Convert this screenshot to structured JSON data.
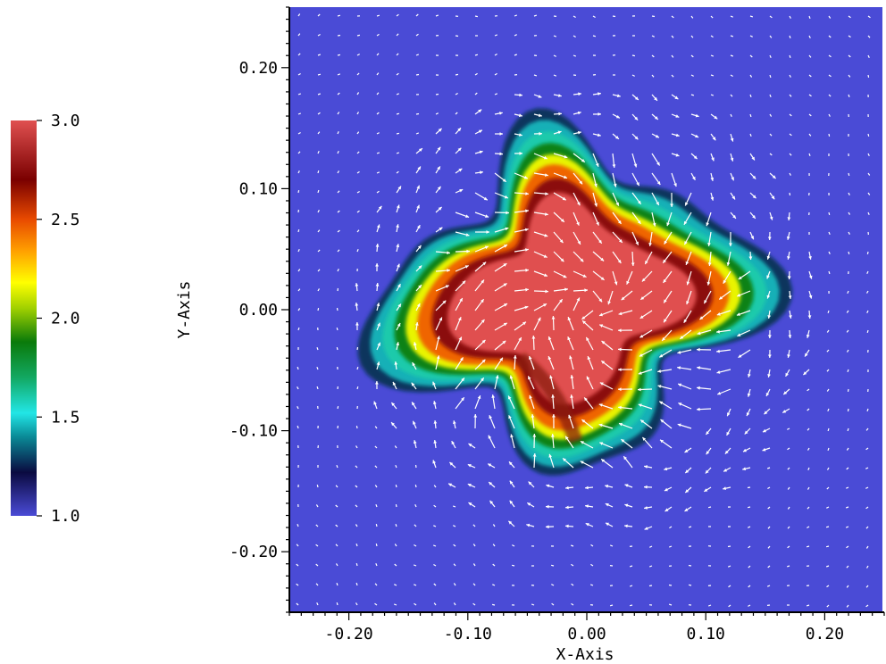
{
  "chart_data": {
    "type": "heatmap",
    "title": "",
    "xlabel": "X-Axis",
    "ylabel": "Y-Axis",
    "xlim": [
      -0.25,
      0.25
    ],
    "ylim": [
      -0.25,
      0.25
    ],
    "x_ticks": [
      "-0.20",
      "-0.10",
      "0.00",
      "0.10",
      "0.20"
    ],
    "x_tick_values": [
      -0.2,
      -0.1,
      0.0,
      0.1,
      0.2
    ],
    "y_ticks": [
      "0.20",
      "0.10",
      "0.00",
      "-0.10",
      "-0.20"
    ],
    "y_tick_values": [
      0.2,
      0.1,
      0.0,
      -0.1,
      -0.2
    ],
    "colorbar": {
      "min": 1.0,
      "max": 3.0,
      "tick_labels": [
        "3.0",
        "2.5",
        "2.0",
        "1.5",
        "1.0"
      ],
      "tick_values": [
        3.0,
        2.5,
        2.0,
        1.5,
        1.0
      ],
      "stops": [
        {
          "value": 1.0,
          "color": "#4a4bd6"
        },
        {
          "value": 1.22,
          "color": "#0a0a40"
        },
        {
          "value": 1.4,
          "color": "#0a8a96"
        },
        {
          "value": 1.52,
          "color": "#22e6e6"
        },
        {
          "value": 1.7,
          "color": "#12a862"
        },
        {
          "value": 1.88,
          "color": "#0a7a0a"
        },
        {
          "value": 2.05,
          "color": "#a0d000"
        },
        {
          "value": 2.18,
          "color": "#ffff00"
        },
        {
          "value": 2.34,
          "color": "#ffa000"
        },
        {
          "value": 2.5,
          "color": "#e84a00"
        },
        {
          "value": 2.7,
          "color": "#7a0000"
        },
        {
          "value": 3.0,
          "color": "#e05050"
        }
      ]
    },
    "background_value": 1.0,
    "field_description_colors": {
      "background": "#4a4bd6",
      "core": "#d84848",
      "vectors": "#ffffff"
    }
  }
}
